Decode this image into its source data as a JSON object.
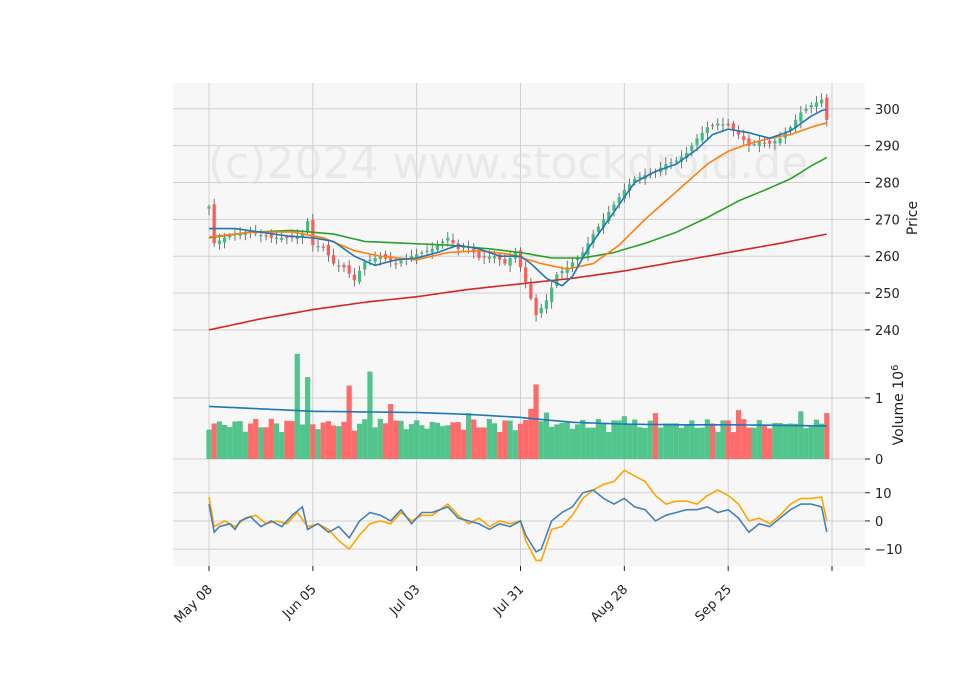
{
  "chart_data": {
    "type": "candlestick",
    "watermark": "(c)2024 www.stockdroid.de",
    "colors": {
      "up": "#3fbf7f",
      "down": "#ff5a5a",
      "sma_fast": "#1f77b4",
      "sma_mid": "#ff7f0e",
      "sma_slow": "#2ca02c",
      "sma_long": "#d62728",
      "volume_avg": "#1f77b4",
      "osc_a": "#4682b4",
      "osc_b": "#ffa500",
      "grid": "#d0d0d0",
      "panel_bg": "#f7f7f7"
    },
    "x_ticks": [
      {
        "label": "May 08",
        "i": 0
      },
      {
        "label": "Jun 05",
        "i": 20
      },
      {
        "label": "Jul 03",
        "i": 40
      },
      {
        "label": "Jul 31",
        "i": 60
      },
      {
        "label": "Aug 28",
        "i": 80
      },
      {
        "label": "Sep 25",
        "i": 100
      },
      {
        "label": "",
        "i": 120
      }
    ],
    "n_points": 120,
    "price_panel": {
      "ylabel": "Price",
      "ylim": [
        234,
        307
      ],
      "yticks": [
        240,
        250,
        260,
        270,
        280,
        290,
        300
      ],
      "close_keypoints": [
        [
          0,
          273.5
        ],
        [
          1,
          263.5
        ],
        [
          3,
          265
        ],
        [
          5,
          266
        ],
        [
          8,
          266.5
        ],
        [
          12,
          265
        ],
        [
          16,
          265
        ],
        [
          18,
          266
        ],
        [
          19,
          269.5
        ],
        [
          20,
          263
        ],
        [
          22,
          262.5
        ],
        [
          24,
          258
        ],
        [
          26,
          257
        ],
        [
          28,
          253.5
        ],
        [
          30,
          258.5
        ],
        [
          33,
          260
        ],
        [
          36,
          258
        ],
        [
          38,
          259.5
        ],
        [
          40,
          260.5
        ],
        [
          43,
          262
        ],
        [
          46,
          265
        ],
        [
          48,
          262
        ],
        [
          50,
          262.5
        ],
        [
          52,
          259.5
        ],
        [
          55,
          260
        ],
        [
          57,
          258
        ],
        [
          59,
          261
        ],
        [
          61,
          253
        ],
        [
          63,
          244
        ],
        [
          64,
          246
        ],
        [
          65,
          248
        ],
        [
          67,
          255
        ],
        [
          69,
          257
        ],
        [
          72,
          261
        ],
        [
          74,
          266
        ],
        [
          76,
          270
        ],
        [
          78,
          274
        ],
        [
          80,
          278
        ],
        [
          82,
          281
        ],
        [
          84,
          282
        ],
        [
          86,
          283
        ],
        [
          88,
          285
        ],
        [
          90,
          286
        ],
        [
          92,
          288
        ],
        [
          94,
          292
        ],
        [
          96,
          295
        ],
        [
          98,
          296
        ],
        [
          100,
          295.5
        ],
        [
          102,
          293
        ],
        [
          104,
          290
        ],
        [
          106,
          291
        ],
        [
          108,
          290.5
        ],
        [
          110,
          292
        ],
        [
          112,
          295
        ],
        [
          114,
          299
        ],
        [
          116,
          301
        ],
        [
          118,
          302.5
        ],
        [
          119,
          297
        ]
      ],
      "sma_fast_keypoints": [
        [
          0,
          267.5
        ],
        [
          5,
          267.5
        ],
        [
          10,
          266.5
        ],
        [
          15,
          265.5
        ],
        [
          20,
          265
        ],
        [
          24,
          264
        ],
        [
          28,
          260
        ],
        [
          32,
          257.5
        ],
        [
          36,
          259
        ],
        [
          40,
          259.5
        ],
        [
          44,
          261
        ],
        [
          48,
          263
        ],
        [
          52,
          262
        ],
        [
          56,
          260
        ],
        [
          60,
          260
        ],
        [
          62,
          258
        ],
        [
          65,
          254
        ],
        [
          68,
          252
        ],
        [
          70,
          254.5
        ],
        [
          73,
          262
        ],
        [
          76,
          268
        ],
        [
          79,
          274
        ],
        [
          82,
          280
        ],
        [
          86,
          283
        ],
        [
          90,
          285
        ],
        [
          94,
          289
        ],
        [
          97,
          293
        ],
        [
          100,
          294.5
        ],
        [
          104,
          293.5
        ],
        [
          108,
          292
        ],
        [
          112,
          294
        ],
        [
          116,
          298
        ],
        [
          118,
          299.5
        ],
        [
          119,
          299.8
        ]
      ],
      "sma_mid_keypoints": [
        [
          0,
          265.2
        ],
        [
          8,
          266.5
        ],
        [
          16,
          266.6
        ],
        [
          22,
          265
        ],
        [
          28,
          261.5
        ],
        [
          33,
          260
        ],
        [
          40,
          259
        ],
        [
          46,
          261
        ],
        [
          52,
          261.5
        ],
        [
          58,
          260.5
        ],
        [
          64,
          258
        ],
        [
          69,
          256.5
        ],
        [
          74,
          258
        ],
        [
          79,
          263
        ],
        [
          84,
          270
        ],
        [
          88,
          275
        ],
        [
          92,
          280
        ],
        [
          96,
          285
        ],
        [
          100,
          288.5
        ],
        [
          104,
          290.5
        ],
        [
          108,
          292
        ],
        [
          112,
          293
        ],
        [
          116,
          295
        ],
        [
          119,
          296.2
        ]
      ],
      "sma_slow_keypoints": [
        [
          0,
          265
        ],
        [
          8,
          266.5
        ],
        [
          16,
          267
        ],
        [
          24,
          266
        ],
        [
          30,
          264
        ],
        [
          38,
          263.5
        ],
        [
          46,
          263
        ],
        [
          54,
          262
        ],
        [
          60,
          261
        ],
        [
          66,
          259.5
        ],
        [
          72,
          259.5
        ],
        [
          78,
          261
        ],
        [
          84,
          263.5
        ],
        [
          90,
          266.5
        ],
        [
          96,
          270.5
        ],
        [
          102,
          275
        ],
        [
          108,
          278.5
        ],
        [
          112,
          281
        ],
        [
          116,
          284.5
        ],
        [
          119,
          286.8
        ]
      ],
      "sma_long_keypoints": [
        [
          0,
          240
        ],
        [
          10,
          243
        ],
        [
          20,
          245.5
        ],
        [
          30,
          247.5
        ],
        [
          40,
          249
        ],
        [
          50,
          251
        ],
        [
          60,
          252.5
        ],
        [
          70,
          254
        ],
        [
          80,
          256
        ],
        [
          90,
          258.5
        ],
        [
          100,
          261
        ],
        [
          110,
          263.5
        ],
        [
          119,
          266
        ]
      ]
    },
    "volume_panel": {
      "ylabel": "Volume  10^6",
      "ylim": [
        0,
        1.75
      ],
      "yticks": [
        0,
        1
      ],
      "spike_bars": [
        [
          17,
          1.72
        ],
        [
          19,
          1.34
        ],
        [
          23,
          0.62
        ],
        [
          27,
          1.2
        ],
        [
          31,
          1.43
        ],
        [
          35,
          0.9
        ],
        [
          50,
          0.75
        ],
        [
          62,
          0.82
        ],
        [
          63,
          1.22
        ],
        [
          65,
          0.76
        ],
        [
          80,
          0.7
        ],
        [
          86,
          0.75
        ],
        [
          102,
          0.8
        ],
        [
          112,
          0.58
        ],
        [
          114,
          0.78
        ],
        [
          119,
          0.75
        ]
      ],
      "avg_keypoints": [
        [
          0,
          0.86
        ],
        [
          10,
          0.82
        ],
        [
          20,
          0.78
        ],
        [
          30,
          0.77
        ],
        [
          40,
          0.76
        ],
        [
          50,
          0.73
        ],
        [
          60,
          0.68
        ],
        [
          65,
          0.64
        ],
        [
          70,
          0.6
        ],
        [
          80,
          0.57
        ],
        [
          90,
          0.56
        ],
        [
          100,
          0.56
        ],
        [
          110,
          0.55
        ],
        [
          119,
          0.54
        ]
      ]
    },
    "oscillator_panel": {
      "ylim": [
        -16,
        22
      ],
      "yticks": [
        -10,
        0,
        10
      ],
      "osc_a_keypoints": [
        [
          0,
          6
        ],
        [
          1,
          -4
        ],
        [
          2,
          -2
        ],
        [
          4,
          -1
        ],
        [
          5,
          -3
        ],
        [
          6,
          0
        ],
        [
          8,
          1.5
        ],
        [
          10,
          -2
        ],
        [
          12,
          0
        ],
        [
          14,
          -2
        ],
        [
          16,
          2
        ],
        [
          18,
          5
        ],
        [
          19,
          -3
        ],
        [
          21,
          -1
        ],
        [
          23,
          -4
        ],
        [
          25,
          -2
        ],
        [
          27,
          -6
        ],
        [
          29,
          0
        ],
        [
          31,
          3
        ],
        [
          33,
          2
        ],
        [
          35,
          0
        ],
        [
          37,
          4
        ],
        [
          39,
          -1
        ],
        [
          41,
          3
        ],
        [
          43,
          3
        ],
        [
          46,
          5
        ],
        [
          48,
          1
        ],
        [
          50,
          0
        ],
        [
          52,
          -1
        ],
        [
          54,
          -3
        ],
        [
          56,
          -1
        ],
        [
          58,
          -2
        ],
        [
          60,
          0
        ],
        [
          61,
          -5
        ],
        [
          63,
          -11
        ],
        [
          64,
          -10
        ],
        [
          66,
          0
        ],
        [
          68,
          3
        ],
        [
          70,
          5
        ],
        [
          72,
          10
        ],
        [
          74,
          11
        ],
        [
          76,
          8
        ],
        [
          78,
          6
        ],
        [
          80,
          8
        ],
        [
          82,
          5
        ],
        [
          84,
          4
        ],
        [
          86,
          0
        ],
        [
          88,
          2
        ],
        [
          90,
          3
        ],
        [
          92,
          4
        ],
        [
          94,
          4
        ],
        [
          96,
          5
        ],
        [
          98,
          3
        ],
        [
          100,
          4
        ],
        [
          102,
          1
        ],
        [
          104,
          -4
        ],
        [
          106,
          -1
        ],
        [
          108,
          -2
        ],
        [
          110,
          1
        ],
        [
          112,
          4
        ],
        [
          114,
          6
        ],
        [
          116,
          6
        ],
        [
          118,
          5
        ],
        [
          119,
          -4
        ]
      ],
      "osc_b_keypoints": [
        [
          0,
          8.5
        ],
        [
          1,
          -2
        ],
        [
          3,
          0
        ],
        [
          5,
          -2
        ],
        [
          7,
          1
        ],
        [
          9,
          2
        ],
        [
          11,
          -1
        ],
        [
          13,
          0
        ],
        [
          15,
          -1
        ],
        [
          17,
          3
        ],
        [
          19,
          -2
        ],
        [
          21,
          -1
        ],
        [
          23,
          -3
        ],
        [
          25,
          -7
        ],
        [
          27,
          -10
        ],
        [
          29,
          -5
        ],
        [
          31,
          -1
        ],
        [
          33,
          0
        ],
        [
          35,
          -1
        ],
        [
          37,
          3
        ],
        [
          39,
          0
        ],
        [
          41,
          2
        ],
        [
          43,
          2
        ],
        [
          46,
          6
        ],
        [
          48,
          2
        ],
        [
          50,
          -1
        ],
        [
          52,
          1
        ],
        [
          54,
          -2
        ],
        [
          56,
          0
        ],
        [
          58,
          -1
        ],
        [
          60,
          0
        ],
        [
          61,
          -7
        ],
        [
          63,
          -14
        ],
        [
          64,
          -14
        ],
        [
          66,
          -3
        ],
        [
          68,
          -2
        ],
        [
          70,
          2
        ],
        [
          72,
          8
        ],
        [
          74,
          11
        ],
        [
          76,
          13
        ],
        [
          78,
          14
        ],
        [
          80,
          18
        ],
        [
          82,
          16
        ],
        [
          84,
          14
        ],
        [
          86,
          9
        ],
        [
          88,
          6
        ],
        [
          90,
          7
        ],
        [
          92,
          7
        ],
        [
          94,
          6
        ],
        [
          96,
          9
        ],
        [
          98,
          11
        ],
        [
          100,
          9
        ],
        [
          102,
          6
        ],
        [
          104,
          0
        ],
        [
          106,
          1
        ],
        [
          108,
          -1
        ],
        [
          110,
          2
        ],
        [
          112,
          6
        ],
        [
          114,
          8
        ],
        [
          116,
          8
        ],
        [
          118,
          8.5
        ],
        [
          119,
          0
        ]
      ]
    }
  }
}
